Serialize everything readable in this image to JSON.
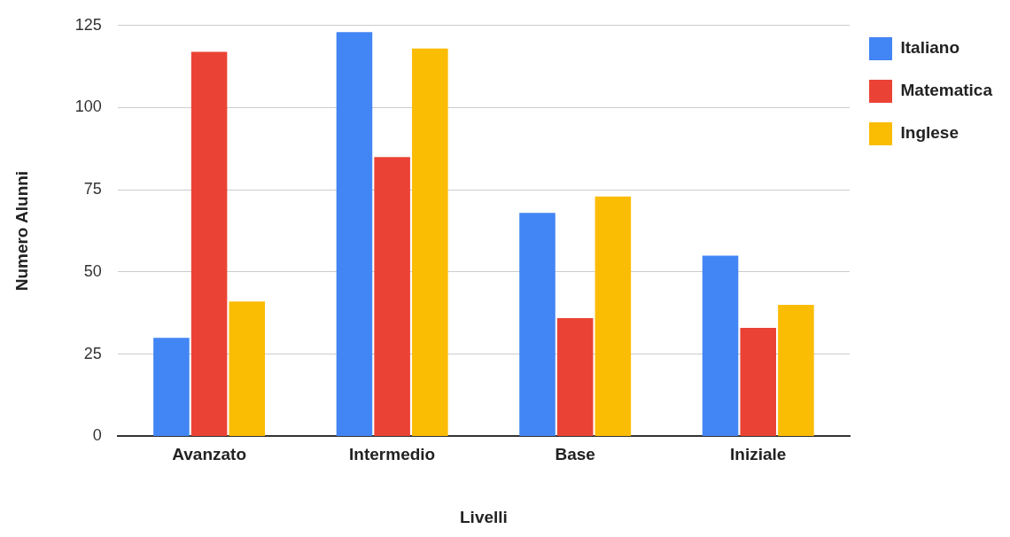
{
  "chart_data": {
    "type": "bar",
    "xlabel": "Livelli",
    "ylabel": "Numero Alunni",
    "categories": [
      "Avanzato",
      "Intermedio",
      "Base",
      "Iniziale"
    ],
    "series": [
      {
        "name": "Italiano",
        "color": "#4285f4",
        "values": [
          30,
          123,
          68,
          55
        ]
      },
      {
        "name": "Matematica",
        "color": "#ea4335",
        "values": [
          117,
          85,
          36,
          33
        ]
      },
      {
        "name": "Inglese",
        "color": "#fbbc04",
        "values": [
          41,
          118,
          73,
          40
        ]
      }
    ],
    "ylim": [
      0,
      125
    ],
    "yticks": [
      0,
      25,
      50,
      75,
      100,
      125
    ],
    "grid": "y",
    "legend": "top right"
  }
}
